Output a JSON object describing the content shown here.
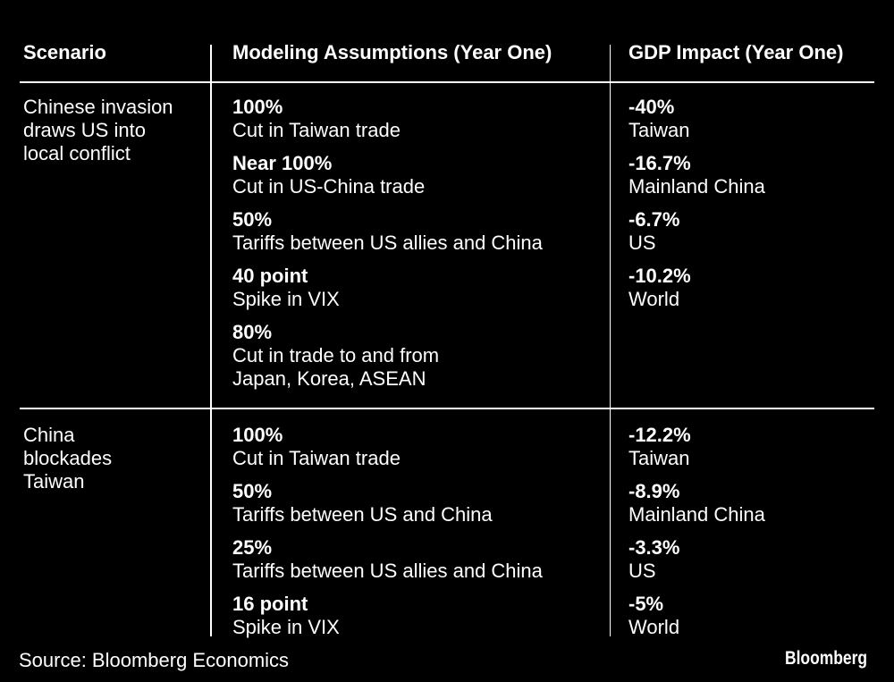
{
  "colors": {
    "background": "#000000",
    "text": "#ffffff",
    "rule": "#ffffff"
  },
  "chart_data": {
    "type": "table",
    "columns": [
      "Scenario",
      "Modeling Assumptions (Year One)",
      "GDP Impact (Year One)"
    ],
    "rows": [
      {
        "scenario_lines": [
          "Chinese invasion",
          "draws US into",
          "local conflict"
        ],
        "assumptions": [
          {
            "value": "100%",
            "desc_lines": [
              "Cut in Taiwan trade"
            ]
          },
          {
            "value": "Near 100%",
            "desc_lines": [
              "Cut in US-China trade"
            ]
          },
          {
            "value": "50%",
            "desc_lines": [
              "Tariffs between US allies and China"
            ]
          },
          {
            "value": "40 point",
            "desc_lines": [
              "Spike in VIX"
            ]
          },
          {
            "value": "80%",
            "desc_lines": [
              "Cut in trade to and from",
              "Japan, Korea, ASEAN"
            ]
          }
        ],
        "impacts": [
          {
            "value": "-40%",
            "desc_lines": [
              "Taiwan"
            ]
          },
          {
            "value": "-16.7%",
            "desc_lines": [
              "Mainland China"
            ]
          },
          {
            "value": "-6.7%",
            "desc_lines": [
              "US"
            ]
          },
          {
            "value": "-10.2%",
            "desc_lines": [
              "World"
            ]
          }
        ]
      },
      {
        "scenario_lines": [
          "China",
          "blockades",
          "Taiwan"
        ],
        "assumptions": [
          {
            "value": "100%",
            "desc_lines": [
              "Cut in Taiwan trade"
            ]
          },
          {
            "value": "50%",
            "desc_lines": [
              "Tariffs between US and China"
            ]
          },
          {
            "value": "25%",
            "desc_lines": [
              "Tariffs between US allies and China"
            ]
          },
          {
            "value": "16 point",
            "desc_lines": [
              "Spike in VIX"
            ]
          }
        ],
        "impacts": [
          {
            "value": "-12.2%",
            "desc_lines": [
              "Taiwan"
            ]
          },
          {
            "value": "-8.9%",
            "desc_lines": [
              "Mainland China"
            ]
          },
          {
            "value": "-3.3%",
            "desc_lines": [
              "US"
            ]
          },
          {
            "value": "-5%",
            "desc_lines": [
              "World"
            ]
          }
        ]
      }
    ],
    "source": "Source: Bloomberg Economics",
    "brand": "Bloomberg"
  }
}
